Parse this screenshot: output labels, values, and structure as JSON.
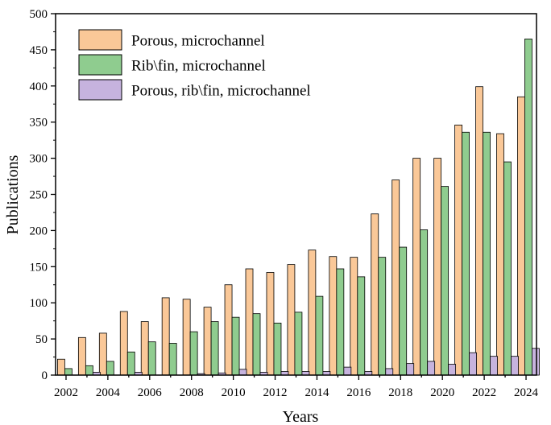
{
  "chart_data": {
    "type": "bar",
    "xlabel": "Years",
    "ylabel": "Publications",
    "ylim": [
      0,
      500
    ],
    "yticks": [
      0,
      50,
      100,
      150,
      200,
      250,
      300,
      350,
      400,
      450,
      500
    ],
    "xtick_labels": [
      "2002",
      "2004",
      "2006",
      "2008",
      "2010",
      "2012",
      "2014",
      "2016",
      "2018",
      "2020",
      "2022",
      "2024"
    ],
    "categories": [
      "2002",
      "2003",
      "2004",
      "2005",
      "2006",
      "2007",
      "2008",
      "2009",
      "2010",
      "2011",
      "2012",
      "2013",
      "2014",
      "2015",
      "2016",
      "2017",
      "2018",
      "2019",
      "2020",
      "2021",
      "2022",
      "2023",
      "2024"
    ],
    "legend_position": "top-left",
    "grid": false,
    "series": [
      {
        "name": "Porous, microchannel",
        "color": "#FAC898",
        "values": [
          22,
          52,
          58,
          88,
          74,
          107,
          105,
          94,
          125,
          147,
          142,
          153,
          173,
          164,
          163,
          223,
          270,
          300,
          300,
          346,
          399,
          334,
          385
        ]
      },
      {
        "name": "Rib\\fin, microchannel",
        "color": "#8FCC8F",
        "values": [
          9,
          13,
          19,
          32,
          46,
          44,
          60,
          74,
          80,
          85,
          72,
          87,
          109,
          147,
          136,
          163,
          177,
          201,
          261,
          336,
          336,
          295,
          465
        ]
      },
      {
        "name": "Porous, rib\\fin, microchannel",
        "color": "#C6B3DE",
        "values": [
          0,
          4,
          0,
          4,
          0,
          0,
          2,
          3,
          8,
          4,
          5,
          5,
          5,
          11,
          5,
          9,
          16,
          19,
          15,
          31,
          26,
          26,
          37
        ]
      }
    ]
  }
}
